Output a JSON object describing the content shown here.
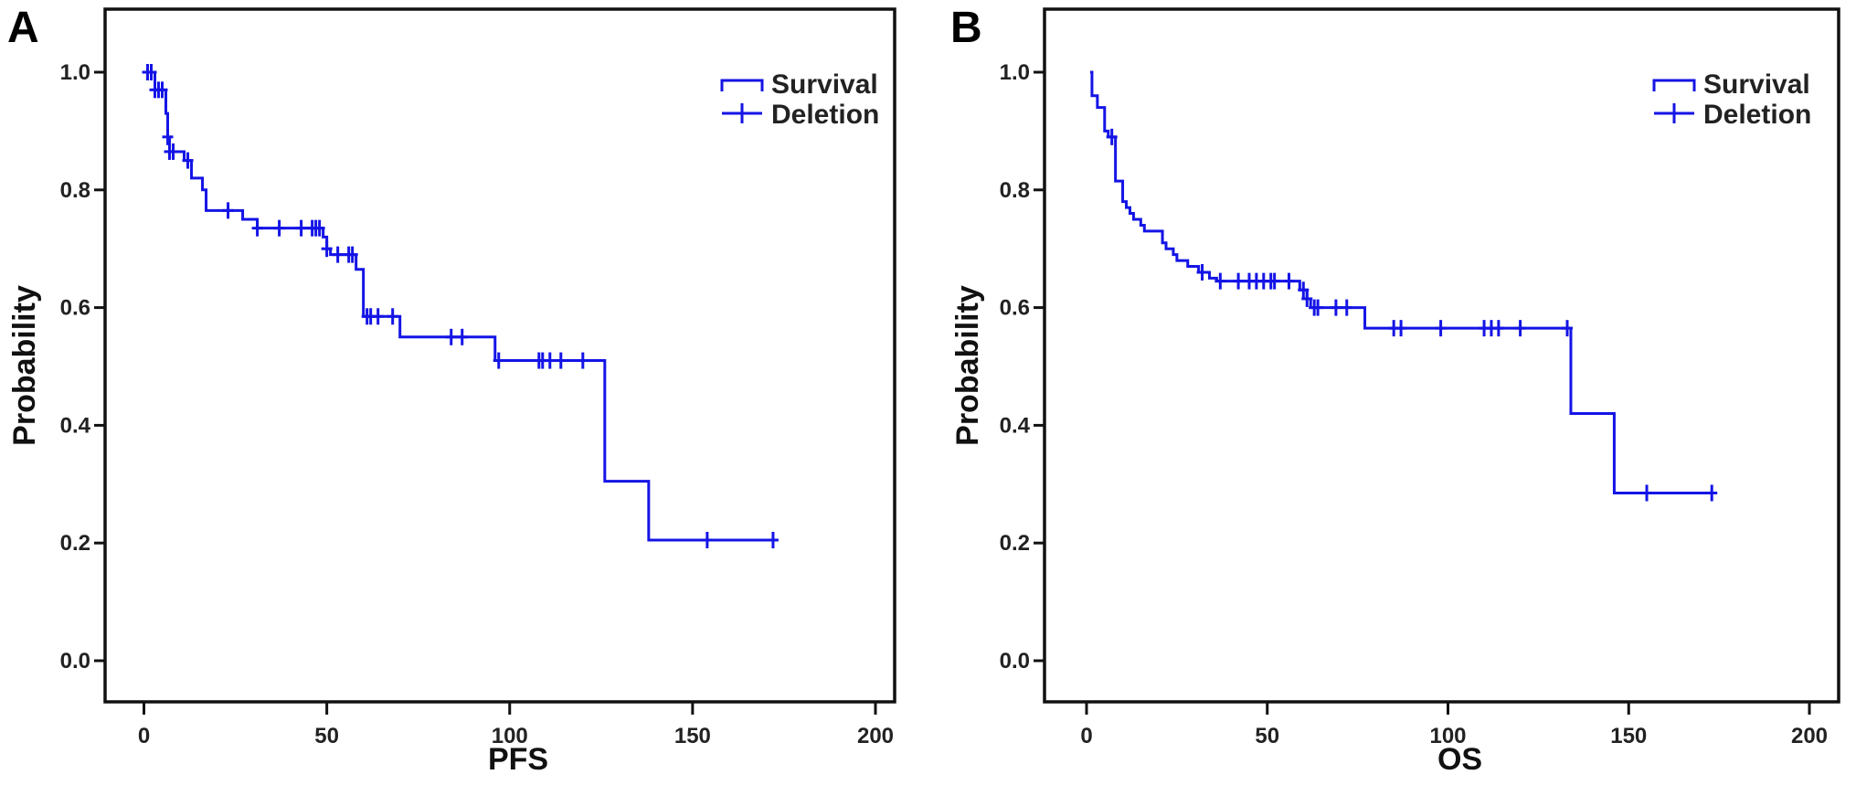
{
  "colors": {
    "curve": "#1414e6",
    "axis": "#111111"
  },
  "chart_data": [
    {
      "type": "line",
      "panel_label": "A",
      "xlabel": "PFS",
      "ylabel": "Probability",
      "xlim": [
        -10,
        210
      ],
      "ylim": [
        -0.07,
        1.07
      ],
      "xticks": [
        "0",
        "50",
        "100",
        "150",
        "200"
      ],
      "yticks": [
        "0.0",
        "0.2",
        "0.4",
        "0.6",
        "0.8",
        "1.0"
      ],
      "grid": false,
      "legend": {
        "position": "top-right",
        "entries": [
          "Survival",
          "Deletion"
        ]
      },
      "series": [
        {
          "name": "Survival",
          "steps": [
            [
              0,
              1.0
            ],
            [
              3,
              0.97
            ],
            [
              6,
              0.93
            ],
            [
              6.5,
              0.89
            ],
            [
              7,
              0.865
            ],
            [
              11,
              0.85
            ],
            [
              13,
              0.82
            ],
            [
              16,
              0.8
            ],
            [
              17,
              0.765
            ],
            [
              27,
              0.75
            ],
            [
              31,
              0.735
            ],
            [
              49,
              0.72
            ],
            [
              50,
              0.7
            ],
            [
              51,
              0.69
            ],
            [
              58,
              0.665
            ],
            [
              60,
              0.585
            ],
            [
              70,
              0.55
            ],
            [
              96,
              0.51
            ],
            [
              126,
              0.305
            ],
            [
              138,
              0.205
            ]
          ],
          "end_time": 172
        },
        {
          "name": "Deletion",
          "censored_times": [
            1,
            2,
            3,
            4,
            5,
            6.5,
            7,
            8,
            12,
            23,
            31,
            37,
            43,
            46,
            47,
            48,
            50,
            53,
            56,
            57,
            61,
            62,
            64,
            68,
            84,
            87,
            97,
            108,
            109,
            111,
            114,
            120,
            154,
            172
          ]
        }
      ]
    },
    {
      "type": "line",
      "panel_label": "B",
      "xlabel": "OS",
      "ylabel": "Probability",
      "xlim": [
        -10,
        210
      ],
      "ylim": [
        -0.07,
        1.07
      ],
      "xticks": [
        "0",
        "50",
        "100",
        "150",
        "200"
      ],
      "yticks": [
        "0.0",
        "0.2",
        "0.4",
        "0.6",
        "0.8",
        "1.0"
      ],
      "grid": false,
      "legend": {
        "position": "top-right",
        "entries": [
          "Survival",
          "Deletion"
        ]
      },
      "series": [
        {
          "name": "Survival",
          "steps": [
            [
              1,
              1.0
            ],
            [
              1.5,
              0.96
            ],
            [
              3,
              0.94
            ],
            [
              5,
              0.9
            ],
            [
              6,
              0.89
            ],
            [
              8,
              0.815
            ],
            [
              10,
              0.78
            ],
            [
              11,
              0.77
            ],
            [
              12,
              0.76
            ],
            [
              13,
              0.75
            ],
            [
              15,
              0.74
            ],
            [
              16,
              0.73
            ],
            [
              21,
              0.71
            ],
            [
              22,
              0.7
            ],
            [
              24,
              0.69
            ],
            [
              25,
              0.68
            ],
            [
              28,
              0.67
            ],
            [
              31,
              0.66
            ],
            [
              34,
              0.65
            ],
            [
              36,
              0.645
            ],
            [
              59,
              0.63
            ],
            [
              61,
              0.615
            ],
            [
              62,
              0.6
            ],
            [
              77,
              0.565
            ],
            [
              134,
              0.42
            ],
            [
              146,
              0.285
            ]
          ],
          "end_time": 173
        },
        {
          "name": "Deletion",
          "censored_times": [
            7,
            32,
            37,
            42,
            45,
            47,
            49,
            51,
            52,
            56,
            60,
            61,
            63,
            64,
            69,
            72,
            85,
            87,
            98,
            110,
            112,
            114,
            120,
            133,
            155,
            173
          ]
        }
      ]
    }
  ]
}
